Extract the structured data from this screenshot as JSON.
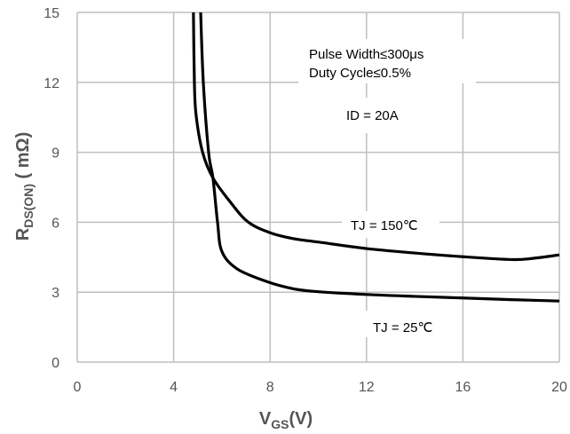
{
  "chart_data": {
    "type": "line",
    "xlabel": "V",
    "xlabel_sub": "GS",
    "xlabel_unit": "(V)",
    "ylabel": "R",
    "ylabel_sub": "DS(ON)",
    "ylabel_unit": " ( mΩ)",
    "xlim": [
      0,
      20
    ],
    "ylim": [
      0,
      15
    ],
    "xticks": [
      "0",
      "4",
      "8",
      "12",
      "16",
      "20"
    ],
    "yticks": [
      "0",
      "3",
      "6",
      "9",
      "12",
      "15"
    ],
    "grid": true,
    "annotations": {
      "pulse": "Pulse Width≤300μs",
      "duty": "Duty Cycle≤0.5%",
      "id": "ID = 20A",
      "t150": "TJ = 150℃",
      "t25": "TJ = 25℃"
    },
    "series": [
      {
        "name": "TJ = 150℃",
        "x": [
          4.82,
          4.86,
          4.93,
          5.2,
          5.63,
          6.4,
          7.1,
          8.0,
          8.95,
          10,
          12,
          14,
          16,
          18,
          18.9,
          20
        ],
        "y": [
          15,
          12,
          10.6,
          9,
          7.9,
          6.8,
          6.0,
          5.55,
          5.3,
          5.15,
          4.87,
          4.68,
          4.52,
          4.4,
          4.45,
          4.6
        ]
      },
      {
        "name": "TJ = 25℃",
        "x": [
          5.12,
          5.23,
          5.45,
          5.63,
          5.82,
          6.0,
          6.63,
          7.85,
          8.95,
          10,
          12,
          14,
          16,
          18,
          20
        ],
        "y": [
          15,
          12,
          9,
          7.9,
          6.0,
          4.75,
          4.0,
          3.46,
          3.15,
          3.02,
          2.9,
          2.82,
          2.75,
          2.68,
          2.62
        ]
      }
    ],
    "colors": {
      "line": "#000000",
      "grid": "#bfbfbf",
      "axis_text": "#595959"
    }
  }
}
